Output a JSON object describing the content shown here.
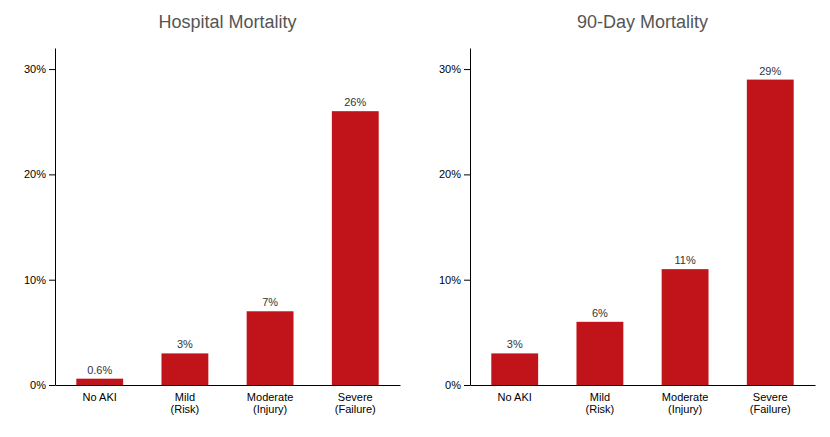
{
  "chart_data": [
    {
      "type": "bar",
      "title": "Hospital Mortality",
      "categories": [
        "No AKI",
        "Mild\n(Risk)",
        "Moderate\n(Injury)",
        "Severe\n(Failure)"
      ],
      "values": [
        0.6,
        3,
        7,
        26
      ],
      "value_labels": [
        "0.6%",
        "3%",
        "7%",
        "26%"
      ],
      "data_labels": true,
      "color": "#c0141a",
      "ylim": [
        0,
        32
      ],
      "yticks": [
        {
          "value": 0,
          "label": "0%"
        },
        {
          "value": 10,
          "label": "10%"
        },
        {
          "value": 20,
          "label": "20%"
        },
        {
          "value": 30,
          "label": "30%"
        }
      ],
      "grid": false
    },
    {
      "type": "bar",
      "title": "90-Day Mortality",
      "categories": [
        "No AKI",
        "Mild\n(Risk)",
        "Moderate\n(Injury)",
        "Severe\n(Failure)"
      ],
      "values": [
        3,
        6,
        11,
        29
      ],
      "value_labels": [
        "3%",
        "6%",
        "11%",
        "29%"
      ],
      "data_labels": true,
      "color": "#c0141a",
      "ylim": [
        0,
        32
      ],
      "yticks": [
        {
          "value": 0,
          "label": "0%"
        },
        {
          "value": 10,
          "label": "10%"
        },
        {
          "value": 20,
          "label": "20%"
        },
        {
          "value": 30,
          "label": "30%"
        }
      ],
      "grid": false
    }
  ]
}
